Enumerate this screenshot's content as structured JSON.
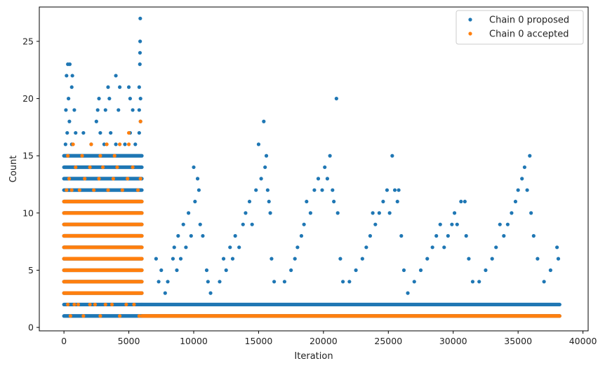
{
  "chart_data": {
    "type": "scatter",
    "title": "",
    "xlabel": "Iteration",
    "ylabel": "Count",
    "xlim": [
      -1900,
      40400
    ],
    "ylim": [
      -0.3,
      28.0
    ],
    "xticks": [
      0,
      5000,
      10000,
      15000,
      20000,
      25000,
      30000,
      35000,
      40000
    ],
    "yticks": [
      0,
      5,
      10,
      15,
      20,
      25
    ],
    "grid": false,
    "legend_position": "upper right",
    "series": [
      {
        "name": "Chain 0 proposed",
        "color": "#1f77b4",
        "bands": [
          {
            "x_start": 0,
            "x_end": 6000,
            "y": 1
          },
          {
            "x_start": 0,
            "x_end": 6000,
            "y": 2
          },
          {
            "x_start": 0,
            "x_end": 6000,
            "y": 3
          },
          {
            "x_start": 0,
            "x_end": 6000,
            "y": 4
          },
          {
            "x_start": 0,
            "x_end": 6000,
            "y": 5
          },
          {
            "x_start": 0,
            "x_end": 6000,
            "y": 6
          },
          {
            "x_start": 0,
            "x_end": 6000,
            "y": 7
          },
          {
            "x_start": 0,
            "x_end": 6000,
            "y": 8
          },
          {
            "x_start": 0,
            "x_end": 6000,
            "y": 9
          },
          {
            "x_start": 0,
            "x_end": 6000,
            "y": 10
          },
          {
            "x_start": 0,
            "x_end": 6000,
            "y": 11
          },
          {
            "x_start": 0,
            "x_end": 6000,
            "y": 12
          },
          {
            "x_start": 0,
            "x_end": 6000,
            "y": 13
          },
          {
            "x_start": 0,
            "x_end": 6000,
            "y": 14
          },
          {
            "x_start": 0,
            "x_end": 6000,
            "y": 15
          },
          {
            "x_start": 6000,
            "x_end": 38200,
            "y": 1
          },
          {
            "x_start": 6000,
            "x_end": 38200,
            "y": 2
          }
        ],
        "points": [
          [
            120,
            16
          ],
          [
            250,
            17
          ],
          [
            420,
            18
          ],
          [
            600,
            16
          ],
          [
            900,
            17
          ],
          [
            1500,
            17
          ],
          [
            2100,
            16
          ],
          [
            2500,
            18
          ],
          [
            2800,
            17
          ],
          [
            3100,
            16
          ],
          [
            3600,
            17
          ],
          [
            4000,
            16
          ],
          [
            4700,
            16
          ],
          [
            5100,
            17
          ],
          [
            5500,
            16
          ],
          [
            5800,
            17
          ],
          [
            150,
            19
          ],
          [
            350,
            20
          ],
          [
            600,
            21
          ],
          [
            800,
            19
          ],
          [
            2600,
            19
          ],
          [
            3200,
            19
          ],
          [
            4200,
            19
          ],
          [
            5300,
            19
          ],
          [
            5800,
            19
          ],
          [
            5900,
            18
          ],
          [
            200,
            22
          ],
          [
            300,
            23
          ],
          [
            450,
            23
          ],
          [
            650,
            22
          ],
          [
            2700,
            20
          ],
          [
            3500,
            20
          ],
          [
            3400,
            21
          ],
          [
            4000,
            22
          ],
          [
            4300,
            21
          ],
          [
            5000,
            21
          ],
          [
            5100,
            20
          ],
          [
            5800,
            21
          ],
          [
            5900,
            20
          ],
          [
            5850,
            23
          ],
          [
            5860,
            24
          ],
          [
            5870,
            25
          ],
          [
            5880,
            27
          ],
          [
            7100,
            6
          ],
          [
            7300,
            4
          ],
          [
            7500,
            5
          ],
          [
            7800,
            3
          ],
          [
            8000,
            4
          ],
          [
            8400,
            6
          ],
          [
            8500,
            7
          ],
          [
            8700,
            5
          ],
          [
            8800,
            8
          ],
          [
            9000,
            6
          ],
          [
            9200,
            9
          ],
          [
            9400,
            7
          ],
          [
            9600,
            10
          ],
          [
            9800,
            8
          ],
          [
            10000,
            14
          ],
          [
            10100,
            11
          ],
          [
            10300,
            13
          ],
          [
            10400,
            12
          ],
          [
            10500,
            9
          ],
          [
            10700,
            8
          ],
          [
            11000,
            5
          ],
          [
            11100,
            4
          ],
          [
            11300,
            3
          ],
          [
            12000,
            4
          ],
          [
            12300,
            6
          ],
          [
            12500,
            5
          ],
          [
            12800,
            7
          ],
          [
            13000,
            6
          ],
          [
            13200,
            8
          ],
          [
            13500,
            7
          ],
          [
            13800,
            9
          ],
          [
            14000,
            10
          ],
          [
            14300,
            11
          ],
          [
            14500,
            9
          ],
          [
            14800,
            12
          ],
          [
            15000,
            16
          ],
          [
            15200,
            13
          ],
          [
            15400,
            18
          ],
          [
            15500,
            14
          ],
          [
            15600,
            15
          ],
          [
            15700,
            12
          ],
          [
            15800,
            11
          ],
          [
            15900,
            10
          ],
          [
            16000,
            6
          ],
          [
            16200,
            4
          ],
          [
            17000,
            4
          ],
          [
            17500,
            5
          ],
          [
            17800,
            6
          ],
          [
            18000,
            7
          ],
          [
            18300,
            8
          ],
          [
            18500,
            9
          ],
          [
            18700,
            11
          ],
          [
            19000,
            10
          ],
          [
            19300,
            12
          ],
          [
            19600,
            13
          ],
          [
            19900,
            12
          ],
          [
            20100,
            14
          ],
          [
            20300,
            13
          ],
          [
            20500,
            15
          ],
          [
            20700,
            12
          ],
          [
            20800,
            11
          ],
          [
            21000,
            20
          ],
          [
            21100,
            10
          ],
          [
            21300,
            6
          ],
          [
            21500,
            4
          ],
          [
            22000,
            4
          ],
          [
            22500,
            5
          ],
          [
            23000,
            6
          ],
          [
            23300,
            7
          ],
          [
            23600,
            8
          ],
          [
            23800,
            10
          ],
          [
            24000,
            9
          ],
          [
            24300,
            10
          ],
          [
            24600,
            11
          ],
          [
            24900,
            12
          ],
          [
            25100,
            10
          ],
          [
            25300,
            15
          ],
          [
            25500,
            12
          ],
          [
            25700,
            11
          ],
          [
            25800,
            12
          ],
          [
            26000,
            8
          ],
          [
            26200,
            5
          ],
          [
            26500,
            3
          ],
          [
            27000,
            4
          ],
          [
            27500,
            5
          ],
          [
            28000,
            6
          ],
          [
            28400,
            7
          ],
          [
            28700,
            8
          ],
          [
            29000,
            9
          ],
          [
            29300,
            7
          ],
          [
            29600,
            8
          ],
          [
            29900,
            9
          ],
          [
            30100,
            10
          ],
          [
            30300,
            9
          ],
          [
            30600,
            11
          ],
          [
            30900,
            11
          ],
          [
            31000,
            8
          ],
          [
            31200,
            6
          ],
          [
            31500,
            4
          ],
          [
            32000,
            4
          ],
          [
            32500,
            5
          ],
          [
            33000,
            6
          ],
          [
            33300,
            7
          ],
          [
            33600,
            9
          ],
          [
            33900,
            8
          ],
          [
            34200,
            9
          ],
          [
            34500,
            10
          ],
          [
            34800,
            11
          ],
          [
            35000,
            12
          ],
          [
            35300,
            13
          ],
          [
            35500,
            14
          ],
          [
            35700,
            12
          ],
          [
            35900,
            15
          ],
          [
            36000,
            10
          ],
          [
            36200,
            8
          ],
          [
            36500,
            6
          ],
          [
            37000,
            4
          ],
          [
            37500,
            5
          ],
          [
            38000,
            7
          ],
          [
            38100,
            6
          ]
        ]
      },
      {
        "name": "Chain 0 accepted",
        "color": "#ff7f0e",
        "bands": [
          {
            "x_start": 0,
            "x_end": 6000,
            "y": 3
          },
          {
            "x_start": 0,
            "x_end": 6000,
            "y": 4
          },
          {
            "x_start": 0,
            "x_end": 6000,
            "y": 5
          },
          {
            "x_start": 0,
            "x_end": 6000,
            "y": 6
          },
          {
            "x_start": 0,
            "x_end": 6000,
            "y": 7
          },
          {
            "x_start": 0,
            "x_end": 6000,
            "y": 8
          },
          {
            "x_start": 0,
            "x_end": 6000,
            "y": 9
          },
          {
            "x_start": 0,
            "x_end": 6000,
            "y": 10
          },
          {
            "x_start": 0,
            "x_end": 6000,
            "y": 11
          },
          {
            "x_start": 6000,
            "x_end": 38200,
            "y": 1
          }
        ],
        "points": [
          [
            300,
            2
          ],
          [
            500,
            1
          ],
          [
            800,
            2
          ],
          [
            1100,
            2
          ],
          [
            1500,
            1
          ],
          [
            2000,
            2
          ],
          [
            2400,
            2
          ],
          [
            2800,
            1
          ],
          [
            3200,
            2
          ],
          [
            3700,
            2
          ],
          [
            4300,
            1
          ],
          [
            4800,
            2
          ],
          [
            5400,
            2
          ],
          [
            5800,
            1
          ],
          [
            200,
            12
          ],
          [
            400,
            13
          ],
          [
            600,
            12
          ],
          [
            900,
            14
          ],
          [
            1200,
            12
          ],
          [
            1600,
            13
          ],
          [
            2000,
            14
          ],
          [
            2300,
            12
          ],
          [
            2700,
            13
          ],
          [
            3000,
            14
          ],
          [
            3400,
            12
          ],
          [
            3800,
            13
          ],
          [
            4100,
            14
          ],
          [
            4500,
            12
          ],
          [
            4900,
            13
          ],
          [
            5300,
            14
          ],
          [
            5700,
            12
          ],
          [
            5900,
            13
          ],
          [
            300,
            15
          ],
          [
            700,
            16
          ],
          [
            1400,
            15
          ],
          [
            2100,
            16
          ],
          [
            2800,
            15
          ],
          [
            3300,
            16
          ],
          [
            3900,
            15
          ],
          [
            4300,
            16
          ],
          [
            5000,
            16
          ],
          [
            5000,
            17
          ],
          [
            5900,
            18
          ]
        ]
      }
    ],
    "legend": [
      "Chain 0 proposed",
      "Chain 0 accepted"
    ]
  }
}
